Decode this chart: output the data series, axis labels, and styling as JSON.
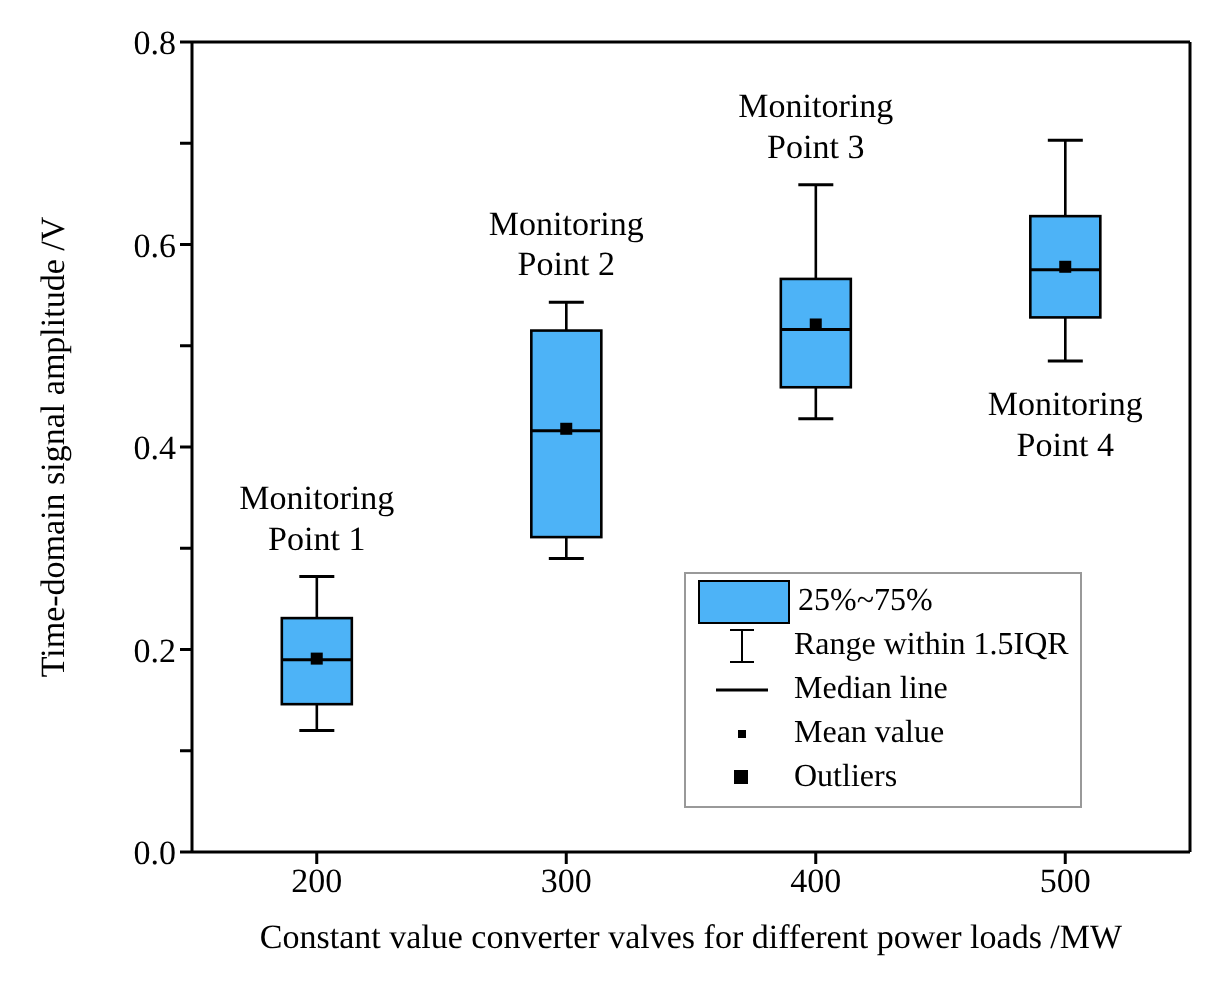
{
  "chart_data": {
    "type": "box",
    "xlabel": "Constant value converter valves for different power loads /MW",
    "ylabel": "Time-domain signal amplitude /V",
    "categories": [
      "200",
      "300",
      "400",
      "500"
    ],
    "series": [
      {
        "name": "25%~75%",
        "color": "#4db3f7",
        "boxes": [
          {
            "low": 0.12,
            "q1": 0.146,
            "median": 0.19,
            "q3": 0.231,
            "high": 0.272,
            "mean": 0.191
          },
          {
            "low": 0.29,
            "q1": 0.311,
            "median": 0.416,
            "q3": 0.515,
            "high": 0.543,
            "mean": 0.418
          },
          {
            "low": 0.428,
            "q1": 0.459,
            "median": 0.516,
            "q3": 0.566,
            "high": 0.659,
            "mean": 0.521
          },
          {
            "low": 0.485,
            "q1": 0.528,
            "median": 0.575,
            "q3": 0.628,
            "high": 0.703,
            "mean": 0.578
          }
        ]
      }
    ],
    "ylim": [
      0,
      0.8
    ],
    "yticks": [
      {
        "value": 0,
        "label": "0.0"
      },
      {
        "value": 0.1,
        "label": null
      },
      0.2,
      {
        "value": 0.3,
        "label": null
      },
      0.4,
      {
        "value": 0.5,
        "label": null
      },
      0.6,
      {
        "value": 0.7,
        "label": null
      },
      0.8
    ],
    "annotations": [
      "Monitoring Point 1",
      "Monitoring Point 2",
      "Monitoring Point 3",
      "Monitoring Point 4",
      "Range within 1.5IQR",
      "Median line",
      "Mean value",
      "Outliers"
    ],
    "legend": "bottom right",
    "grid": false,
    "marker": "square"
  }
}
